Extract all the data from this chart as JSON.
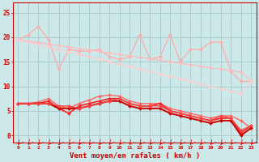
{
  "background_color": "#cce8e8",
  "grid_color": "#aacccc",
  "x_label": "Vent moyen/en rafales ( km/h )",
  "x_ticks": [
    0,
    1,
    2,
    3,
    4,
    5,
    6,
    7,
    8,
    9,
    10,
    11,
    12,
    13,
    14,
    15,
    16,
    17,
    18,
    19,
    20,
    21,
    22,
    23
  ],
  "y_ticks": [
    0,
    5,
    10,
    15,
    20,
    25
  ],
  "ylim": [
    -1.5,
    27
  ],
  "xlim": [
    -0.5,
    23.5
  ],
  "lines": [
    {
      "color": "#ffaaaa",
      "lw": 0.9,
      "marker": "D",
      "markersize": 2,
      "y": [
        19.5,
        20.5,
        22.2,
        19.5,
        13.5,
        17.5,
        17.2,
        17.2,
        17.5,
        16.0,
        15.5,
        16.0,
        20.5,
        15.5,
        16.0,
        20.5,
        15.0,
        17.5,
        17.5,
        19.0,
        19.0,
        13.0,
        11.0,
        11.0
      ]
    },
    {
      "color": "#ffbbbb",
      "lw": 0.9,
      "marker": "D",
      "markersize": 2,
      "y": [
        19.5,
        19.2,
        18.9,
        18.6,
        18.3,
        18.0,
        17.7,
        17.4,
        17.1,
        16.8,
        16.5,
        16.2,
        15.9,
        15.6,
        15.3,
        15.0,
        14.7,
        14.4,
        14.1,
        13.8,
        13.5,
        13.2,
        12.9,
        11.0
      ]
    },
    {
      "color": "#ffcccc",
      "lw": 0.9,
      "marker": "D",
      "markersize": 2,
      "y": [
        19.5,
        19.0,
        18.5,
        18.0,
        17.5,
        17.0,
        16.5,
        16.0,
        15.5,
        15.0,
        14.5,
        14.0,
        13.5,
        13.0,
        12.5,
        12.0,
        11.5,
        11.0,
        10.5,
        10.0,
        9.5,
        9.0,
        8.5,
        11.0
      ]
    },
    {
      "color": "#ff6666",
      "lw": 1.0,
      "marker": "D",
      "markersize": 2,
      "y": [
        6.5,
        6.5,
        6.8,
        7.5,
        6.0,
        5.5,
        6.5,
        7.2,
        8.0,
        8.2,
        8.0,
        7.0,
        6.5,
        6.5,
        6.5,
        5.5,
        5.0,
        4.5,
        4.0,
        3.5,
        4.0,
        4.0,
        3.0,
        1.5
      ]
    },
    {
      "color": "#ff2222",
      "lw": 1.2,
      "marker": "D",
      "markersize": 2,
      "y": [
        6.5,
        6.5,
        6.5,
        7.0,
        5.5,
        4.5,
        6.0,
        6.5,
        7.0,
        7.5,
        7.5,
        6.5,
        6.0,
        6.0,
        6.5,
        5.0,
        4.5,
        4.0,
        3.5,
        3.0,
        3.5,
        3.5,
        0.5,
        2.0
      ]
    },
    {
      "color": "#cc0000",
      "lw": 1.4,
      "marker": "D",
      "markersize": 2,
      "y": [
        6.5,
        6.5,
        6.5,
        6.5,
        5.5,
        5.5,
        5.5,
        6.0,
        6.5,
        7.0,
        7.0,
        6.0,
        5.5,
        5.5,
        5.5,
        4.5,
        4.0,
        3.5,
        3.0,
        2.5,
        3.0,
        3.0,
        0.0,
        1.5
      ]
    },
    {
      "color": "#ff4444",
      "lw": 1.0,
      "marker": "D",
      "markersize": 2,
      "y": [
        6.5,
        6.5,
        6.5,
        6.5,
        6.0,
        6.0,
        5.5,
        6.0,
        6.5,
        7.0,
        7.5,
        6.5,
        6.0,
        6.0,
        6.0,
        5.0,
        4.5,
        4.0,
        3.5,
        3.0,
        4.0,
        3.5,
        1.0,
        2.0
      ]
    }
  ],
  "arrow_color": "#cc0000",
  "spine_color": "#cc0000",
  "tick_color": "#cc0000",
  "label_color": "#cc0000"
}
